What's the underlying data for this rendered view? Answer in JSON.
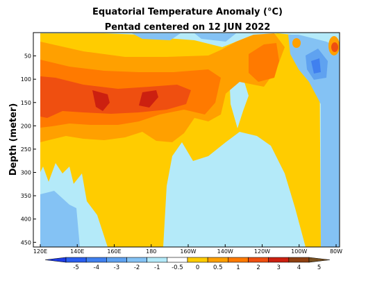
{
  "chart_data": {
    "type": "heatmap",
    "title": "Equatorial Temperature Anomaly (°C)",
    "subtitle": "Pentad centered on 12 JUN 2022",
    "xlabel": "",
    "ylabel": "Depth (meter)",
    "x_ticks": [
      "120E",
      "140E",
      "160E",
      "180",
      "160W",
      "140W",
      "120W",
      "100W",
      "80W"
    ],
    "y_ticks": [
      "50",
      "100",
      "150",
      "200",
      "250",
      "300",
      "350",
      "400",
      "450"
    ],
    "ylim": [
      0,
      460
    ],
    "colorbar": {
      "labels": [
        "-5",
        "-4",
        "-3",
        "-2",
        "-1",
        "-0.5",
        "0",
        "0.5",
        "1",
        "2",
        "3",
        "4",
        "5"
      ],
      "colors": [
        "#1e3ce6",
        "#2a5ff0",
        "#4080ef",
        "#5fa2f0",
        "#84c2f4",
        "#b4eaf9",
        "#ffffff",
        "#ffcc00",
        "#ffa000",
        "#ff7a00",
        "#ef4f10",
        "#cc2010",
        "#904010",
        "#785020"
      ]
    }
  }
}
